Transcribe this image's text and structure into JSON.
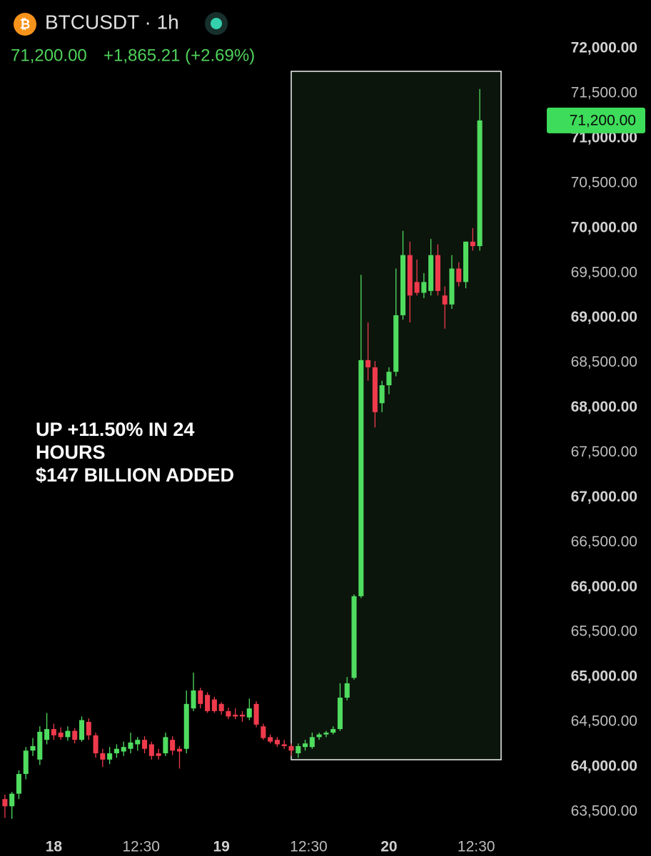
{
  "chart_data": {
    "type": "candlestick",
    "symbol": "BTCUSDT · 1h",
    "last_price": {
      "value": 71200,
      "label": "71,200.00"
    },
    "change": "+1,865.21 (+2.69%)",
    "annotation": [
      "UP +11.50% IN 24 HOURS",
      "$147 BILLION ADDED"
    ],
    "up_color": "#4fdc5f",
    "down_color": "#ef3a4c",
    "categories": [
      null,
      null,
      null,
      null,
      null,
      null,
      null,
      null,
      null,
      null,
      null,
      null,
      null,
      null,
      null,
      null,
      null,
      null,
      null,
      null,
      null,
      null,
      null,
      null,
      null,
      null,
      null,
      null,
      null,
      null,
      null,
      null,
      null,
      null,
      null,
      null,
      null,
      null,
      null,
      null,
      null,
      null,
      null,
      null,
      null,
      null,
      null,
      null,
      null,
      null,
      null,
      null,
      null,
      null,
      null,
      null,
      null,
      null,
      null,
      null,
      null,
      null,
      null,
      null,
      null,
      null,
      null,
      null,
      null
    ],
    "open": [
      63640,
      63560,
      63700,
      63920,
      64180,
      64080,
      64300,
      64420,
      64380,
      64330,
      64400,
      64300,
      64500,
      64350,
      64150,
      64080,
      64150,
      64170,
      64200,
      64250,
      64300,
      64250,
      64150,
      64150,
      64300,
      64200,
      64200,
      64650,
      64850,
      64800,
      64750,
      64700,
      64620,
      64580,
      64580,
      64550,
      64700,
      64450,
      64330,
      64300,
      64250,
      64230,
      64150,
      64220,
      64220,
      64330,
      64360,
      64380,
      64420,
      64770,
      64990,
      65900,
      68530,
      68450,
      68050,
      68250,
      68400,
      69030,
      69700,
      69400,
      69280,
      69300,
      69700,
      69250,
      69150,
      69550,
      69400,
      69850,
      69800
    ],
    "high": [
      63690,
      63720,
      63960,
      64220,
      64320,
      64450,
      64600,
      64480,
      64440,
      64450,
      64430,
      64560,
      64540,
      64380,
      64200,
      64220,
      64250,
      64280,
      64380,
      64330,
      64340,
      64280,
      64200,
      64380,
      64340,
      64230,
      64850,
      65050,
      64880,
      64830,
      64780,
      64720,
      64660,
      64650,
      64620,
      64760,
      64730,
      64480,
      64360,
      64330,
      64300,
      64260,
      64260,
      64300,
      64380,
      64380,
      64400,
      64450,
      64930,
      65000,
      65920,
      69480,
      68950,
      68520,
      68300,
      68450,
      69550,
      69970,
      69850,
      69650,
      69500,
      69880,
      69820,
      69350,
      69700,
      69620,
      69850,
      70000,
      71550
    ],
    "low": [
      63430,
      63420,
      63640,
      63860,
      64120,
      64020,
      64250,
      64300,
      64300,
      64290,
      64260,
      64280,
      64300,
      64100,
      64000,
      64030,
      64100,
      64120,
      64150,
      64180,
      64150,
      64080,
      64080,
      64120,
      64130,
      63980,
      64150,
      64620,
      64650,
      64600,
      64600,
      64580,
      64530,
      64530,
      64500,
      64520,
      64440,
      64300,
      64260,
      64220,
      64200,
      64120,
      64100,
      64180,
      64200,
      64300,
      64330,
      64360,
      64400,
      64740,
      64970,
      65880,
      68300,
      67780,
      67950,
      68150,
      68350,
      68980,
      68950,
      69250,
      69220,
      69250,
      69250,
      68880,
      69100,
      69350,
      69330,
      69750,
      69750
    ],
    "close": [
      63560,
      63700,
      63920,
      64180,
      64230,
      64390,
      64420,
      64350,
      64330,
      64400,
      64300,
      64520,
      64350,
      64150,
      64080,
      64150,
      64200,
      64220,
      64270,
      64300,
      64200,
      64120,
      64120,
      64330,
      64180,
      64170,
      64700,
      64850,
      64700,
      64620,
      64620,
      64620,
      64560,
      64560,
      64560,
      64650,
      64470,
      64320,
      64280,
      64250,
      64230,
      64180,
      64230,
      64260,
      64330,
      64360,
      64380,
      64420,
      64770,
      64930,
      65900,
      68530,
      68450,
      67950,
      68250,
      68400,
      69030,
      69700,
      69250,
      69280,
      69400,
      69700,
      69300,
      69150,
      69550,
      69400,
      69850,
      69800,
      71200
    ],
    "xticks": [
      {
        "value": 7,
        "label": "18"
      },
      {
        "value": 19.5,
        "label": "12:30"
      },
      {
        "value": 31,
        "label": "19"
      },
      {
        "value": 43.5,
        "label": "12:30"
      },
      {
        "value": 55,
        "label": "20"
      },
      {
        "value": 67.5,
        "label": "12:30"
      }
    ],
    "ylim": [
      63300,
      72200
    ],
    "yticks": [
      {
        "value": 63500,
        "label": "63,500.00"
      },
      {
        "value": 64000,
        "label": "64,000.00"
      },
      {
        "value": 64500,
        "label": "64,500.00"
      },
      {
        "value": 65000,
        "label": "65,000.00"
      },
      {
        "value": 65500,
        "label": "65,500.00"
      },
      {
        "value": 66000,
        "label": "66,000.00"
      },
      {
        "value": 66500,
        "label": "66,500.00"
      },
      {
        "value": 67000,
        "label": "67,000.00"
      },
      {
        "value": 67500,
        "label": "67,500.00"
      },
      {
        "value": 68000,
        "label": "68,000.00"
      },
      {
        "value": 68500,
        "label": "68,500.00"
      },
      {
        "value": 69000,
        "label": "69,000.00"
      },
      {
        "value": 69500,
        "label": "69,500.00"
      },
      {
        "value": 70000,
        "label": "70,000.00"
      },
      {
        "value": 70500,
        "label": "70,500.00"
      },
      {
        "value": 71000,
        "label": "71,000.00"
      },
      {
        "value": 71500,
        "label": "71,500.00"
      },
      {
        "value": 72000,
        "label": "72,000.00"
      }
    ]
  }
}
